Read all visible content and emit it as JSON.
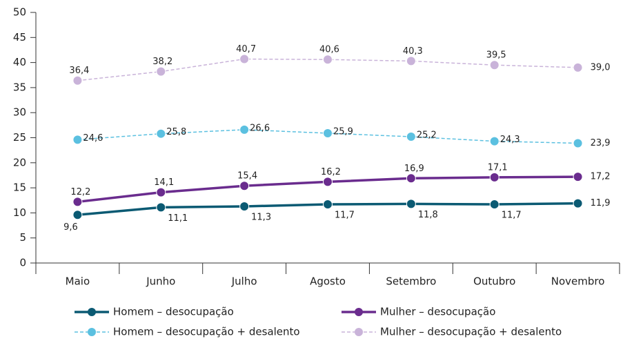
{
  "chart_data": {
    "type": "line",
    "categories": [
      "Maio",
      "Junho",
      "Julho",
      "Agosto",
      "Setembro",
      "Outubro",
      "Novembro"
    ],
    "series": [
      {
        "name": "Homem – desocupação",
        "color": "#0b5a73",
        "dashed": false,
        "values": [
          9.6,
          11.1,
          11.3,
          11.7,
          11.8,
          11.7,
          11.9
        ],
        "value_labels": [
          "9,6",
          "11,1",
          "11,3",
          "11,7",
          "11,8",
          "11,7",
          "11,9"
        ]
      },
      {
        "name": "Mulher – desocupação",
        "color": "#6a2c8e",
        "dashed": false,
        "values": [
          12.2,
          14.1,
          15.4,
          16.2,
          16.9,
          17.1,
          17.2
        ],
        "value_labels": [
          "12,2",
          "14,1",
          "15,4",
          "16,2",
          "16,9",
          "17,1",
          "17,2"
        ]
      },
      {
        "name": "Homem – desocupação + desalento",
        "color": "#5bc0e0",
        "dashed": true,
        "values": [
          24.6,
          25.8,
          26.6,
          25.9,
          25.2,
          24.3,
          23.9
        ],
        "value_labels": [
          "24,6",
          "25,8",
          "26,6",
          "25,9",
          "25,2",
          "24,3",
          "23,9"
        ]
      },
      {
        "name": "Mulher – desocupação + desalento",
        "color": "#c9b3d9",
        "dashed": true,
        "values": [
          36.4,
          38.2,
          40.7,
          40.6,
          40.3,
          39.5,
          39.0
        ],
        "value_labels": [
          "36,4",
          "38,2",
          "40,7",
          "40,6",
          "40,3",
          "39,5",
          "39,0"
        ]
      }
    ],
    "ylim": [
      0,
      50
    ],
    "yticks": [
      0,
      5,
      10,
      15,
      20,
      25,
      30,
      35,
      40,
      45,
      50
    ],
    "grid": false
  }
}
